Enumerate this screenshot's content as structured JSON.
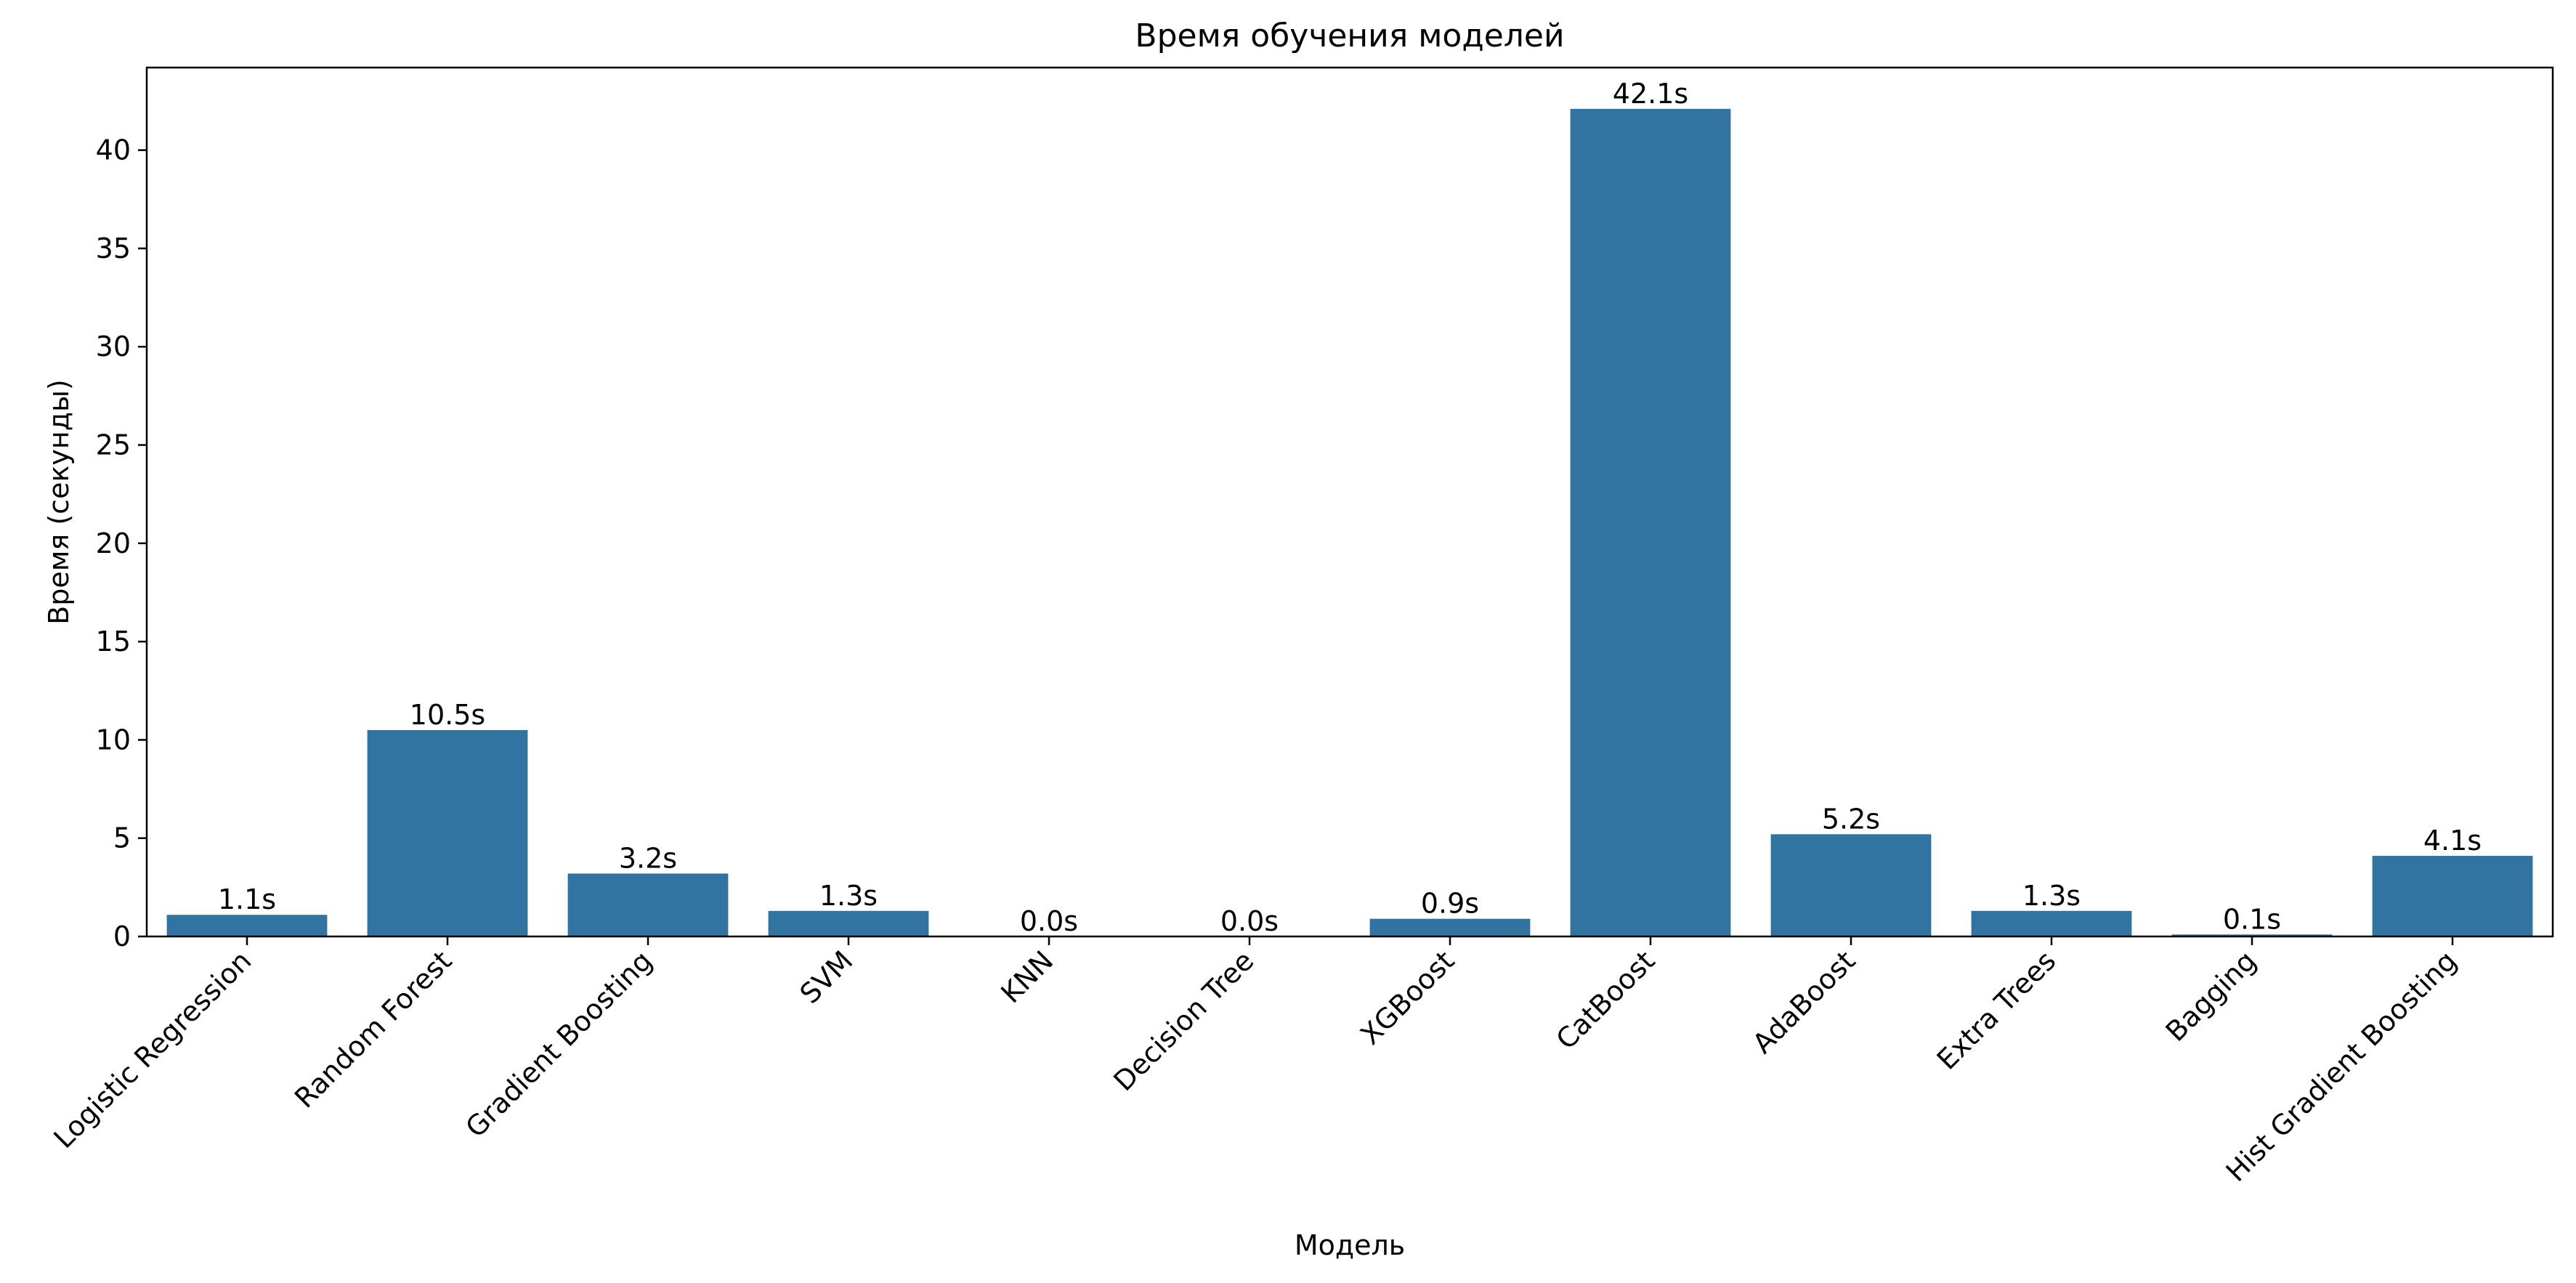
{
  "chart_data": {
    "type": "bar",
    "title": "Время обучения моделей",
    "xlabel": "Модель",
    "ylabel": "Время (секунды)",
    "categories": [
      "Logistic Regression",
      "Random Forest",
      "Gradient Boosting",
      "SVM",
      "KNN",
      "Decision Tree",
      "XGBoost",
      "CatBoost",
      "AdaBoost",
      "Extra Trees",
      "Bagging",
      "Hist Gradient Boosting"
    ],
    "values": [
      1.1,
      10.5,
      3.2,
      1.3,
      0.0,
      0.0,
      0.9,
      42.1,
      5.2,
      1.3,
      0.1,
      4.1
    ],
    "data_labels": [
      "1.1s",
      "10.5s",
      "3.2s",
      "1.3s",
      "0.0s",
      "0.0s",
      "0.9s",
      "42.1s",
      "5.2s",
      "1.3s",
      "0.1s",
      "4.1s"
    ],
    "ylim": [
      0,
      44.2
    ],
    "yticks": [
      0,
      5,
      10,
      15,
      20,
      25,
      30,
      35,
      40
    ],
    "grid": false,
    "bar_color": "#3274a1"
  }
}
